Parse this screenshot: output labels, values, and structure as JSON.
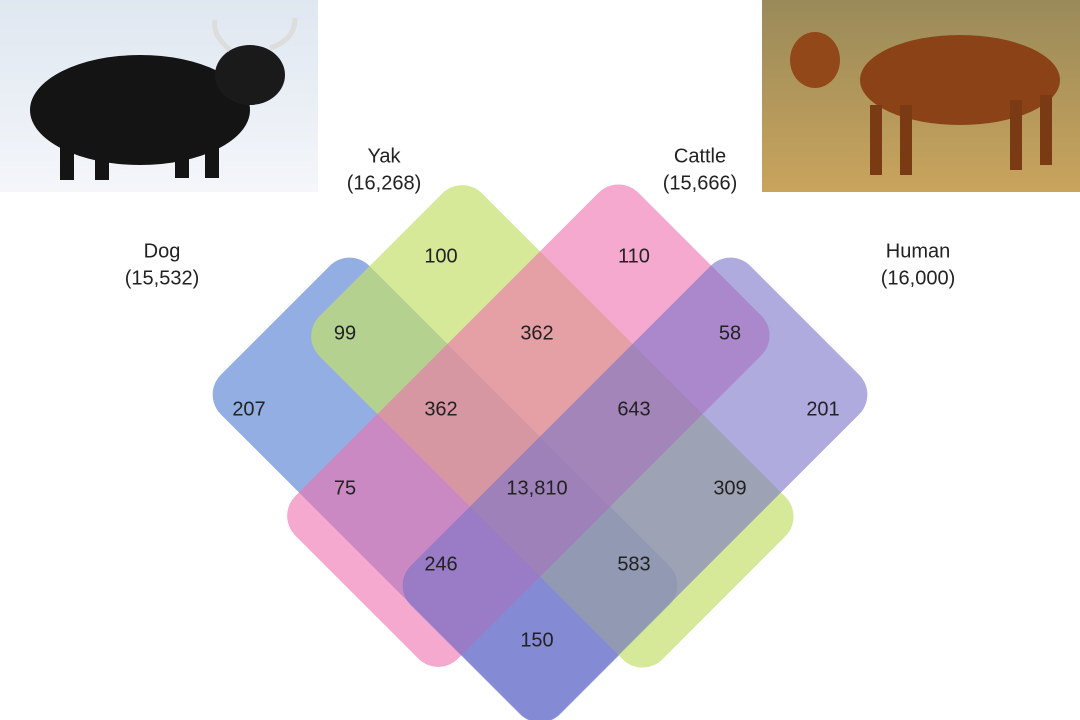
{
  "sets": [
    {
      "name": "Dog",
      "count": "(15,532)"
    },
    {
      "name": "Yak",
      "count": "(16,268)"
    },
    {
      "name": "Cattle",
      "count": "(15,666)"
    },
    {
      "name": "Human",
      "count": "(16,000)"
    }
  ],
  "regions": [
    "100",
    "110",
    "99",
    "362",
    "58",
    "207",
    "362",
    "643",
    "201",
    "75",
    "13,810",
    "309",
    "246",
    "583",
    "150"
  ]
}
